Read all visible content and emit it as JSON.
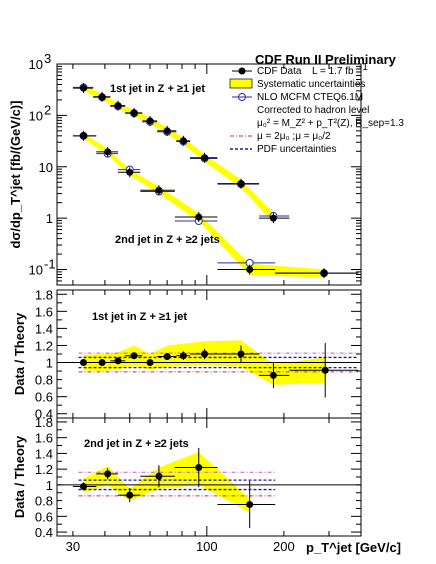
{
  "chart_data": [
    {
      "type": "scatter",
      "panel": "main",
      "title": "CDF Run II Preliminary",
      "ylabel": "dσ/dp_T^jet [fb/(GeV/c)]",
      "yscale": "log",
      "ylim": [
        0.05,
        1000
      ],
      "xscale": "log",
      "xlim": [
        26,
        400
      ],
      "yticks": [
        {
          "v": 0.1,
          "base": "10",
          "exp": "-1"
        },
        {
          "v": 1,
          "base": "1",
          "exp": ""
        },
        {
          "v": 10,
          "base": "10",
          "exp": ""
        },
        {
          "v": 100,
          "base": "10",
          "exp": "2"
        },
        {
          "v": 1000,
          "base": "10",
          "exp": "3"
        }
      ],
      "annotations": [
        "1st jet in Z + ≥1 jet",
        "2nd jet in Z + ≥2 jets"
      ],
      "legend": {
        "position": "top-right",
        "entries": [
          {
            "key": "data",
            "label": "CDF Data",
            "extra": "L = 1.7 fb",
            "extra_sup": "-1"
          },
          {
            "key": "syst",
            "label": "Systematic uncertainties"
          },
          {
            "key": "nlo",
            "label": "NLO MCFM CTEQ6.1M"
          },
          {
            "key": "note1",
            "label": "Corrected to hadron level"
          },
          {
            "key": "note2",
            "label": "μ₀² = M_Z² + p_T²(Z), R_sep=1.3"
          },
          {
            "key": "mu",
            "label": "μ = 2μ₀ ;μ = μ₀/2"
          },
          {
            "key": "pdf",
            "label": "PDF uncertainties"
          }
        ]
      },
      "series": [
        {
          "name": "1st jet in Z + ≥1 jet",
          "x": [
            33,
            39,
            45,
            52,
            60,
            70,
            81,
            98,
            136,
            182
          ],
          "xerr": [
            [
              30,
              36
            ],
            [
              36,
              42
            ],
            [
              42,
              48
            ],
            [
              48,
              56
            ],
            [
              56,
              64
            ],
            [
              64,
              76
            ],
            [
              76,
              86
            ],
            [
              86,
              110
            ],
            [
              110,
              160
            ],
            [
              160,
              210
            ]
          ],
          "y_data": [
            340,
            230,
            155,
            112,
            78,
            50,
            32,
            15,
            4.7,
            1.0
          ],
          "y_nlo": [
            350,
            225,
            150,
            110,
            75,
            48,
            31,
            14.5,
            4.6,
            1.1
          ],
          "syst_band": [
            [
              300,
              390
            ],
            [
              200,
              260
            ],
            [
              135,
              175
            ],
            [
              98,
              128
            ],
            [
              68,
              90
            ],
            [
              43,
              58
            ],
            [
              27,
              37
            ],
            [
              12.5,
              17.5
            ],
            [
              3.9,
              5.6
            ],
            [
              0.82,
              1.25
            ]
          ]
        },
        {
          "name": "2nd jet in Z + ≥2 jets",
          "x": [
            33,
            41,
            50,
            65,
            93,
            147,
            287
          ],
          "xerr": [
            [
              30,
              37
            ],
            [
              37,
              45
            ],
            [
              45,
              55
            ],
            [
              55,
              75
            ],
            [
              75,
              110
            ],
            [
              110,
              185
            ],
            [
              185,
              390
            ]
          ],
          "y_data": [
            40,
            19.5,
            7.8,
            3.5,
            1.05,
            0.1,
            0.085
          ],
          "y_nlo": [
            40,
            18.0,
            8.8,
            3.3,
            0.88,
            0.135,
            0.085
          ],
          "syst_band": [
            [
              35,
              45
            ],
            [
              17,
              22.5
            ],
            [
              6.8,
              8.9
            ],
            [
              3.0,
              4.1
            ],
            [
              0.87,
              1.25
            ],
            [
              0.078,
              0.13
            ],
            [
              0.07,
              0.1
            ]
          ]
        }
      ]
    },
    {
      "type": "scatter",
      "panel": "ratio1",
      "ylabel": "Data / Theory",
      "ylim": [
        0.35,
        1.85
      ],
      "yticks": [
        0.4,
        0.6,
        0.8,
        1,
        1.2,
        1.4,
        1.6,
        1.8
      ],
      "annotation": "1st jet in Z + ≥1 jet",
      "x": [
        33,
        39,
        45,
        52,
        60,
        70,
        81,
        98,
        136,
        182,
        290
      ],
      "xerr": [
        [
          30,
          36
        ],
        [
          36,
          42
        ],
        [
          42,
          48
        ],
        [
          48,
          56
        ],
        [
          56,
          64
        ],
        [
          64,
          76
        ],
        [
          76,
          86
        ],
        [
          86,
          110
        ],
        [
          110,
          160
        ],
        [
          160,
          210
        ],
        [
          210,
          390
        ]
      ],
      "y": [
        1.0,
        1.0,
        1.02,
        1.08,
        1.0,
        1.07,
        1.08,
        1.1,
        1.1,
        0.85,
        0.91
      ],
      "yerr": [
        0.02,
        0.02,
        0.02,
        0.03,
        0.03,
        0.04,
        0.05,
        0.06,
        0.1,
        0.15,
        0.32
      ],
      "band_lo": [
        0.91,
        0.9,
        0.92,
        0.96,
        0.92,
        0.95,
        0.96,
        0.97,
        0.95,
        0.74,
        0.76
      ],
      "band_hi": [
        1.09,
        1.1,
        1.12,
        1.2,
        1.1,
        1.2,
        1.22,
        1.25,
        1.26,
        0.98,
        1.06
      ],
      "pdf_lo": 0.94,
      "pdf_hi": 1.06,
      "mu_lo": 0.89,
      "mu_hi": 1.11
    },
    {
      "type": "scatter",
      "panel": "ratio2",
      "ylabel": "Data / Theory",
      "ylim": [
        0.35,
        1.85
      ],
      "yticks": [
        0.4,
        0.6,
        0.8,
        1,
        1.2,
        1.4,
        1.6,
        1.8
      ],
      "xlabel": "p_T^jet [GeV/c]",
      "xticks": [
        30,
        100,
        200
      ],
      "annotation": "2nd jet in Z + ≥2 jets",
      "x": [
        33,
        41,
        50,
        65,
        93,
        147
      ],
      "xerr": [
        [
          30,
          37
        ],
        [
          37,
          45
        ],
        [
          45,
          55
        ],
        [
          55,
          75
        ],
        [
          75,
          110
        ],
        [
          110,
          185
        ]
      ],
      "y": [
        0.98,
        1.14,
        0.87,
        1.11,
        1.22,
        0.75
      ],
      "yerr": [
        0.05,
        0.07,
        0.09,
        0.14,
        0.25,
        0.3
      ],
      "band_lo": [
        0.9,
        1.0,
        0.8,
        0.95,
        1.0,
        0.65
      ],
      "band_hi": [
        1.08,
        1.24,
        0.95,
        1.22,
        1.42,
        0.82
      ],
      "pdf_lo": 0.94,
      "pdf_hi": 1.06,
      "mu_lo": 0.86,
      "mu_hi": 1.16
    }
  ],
  "colors": {
    "band": "#ffff00",
    "data": "#000000",
    "nlo": "#2a2aa8",
    "mu": "#d03030",
    "mu2": "#c060c0",
    "pdf": "#1a1aa0"
  }
}
